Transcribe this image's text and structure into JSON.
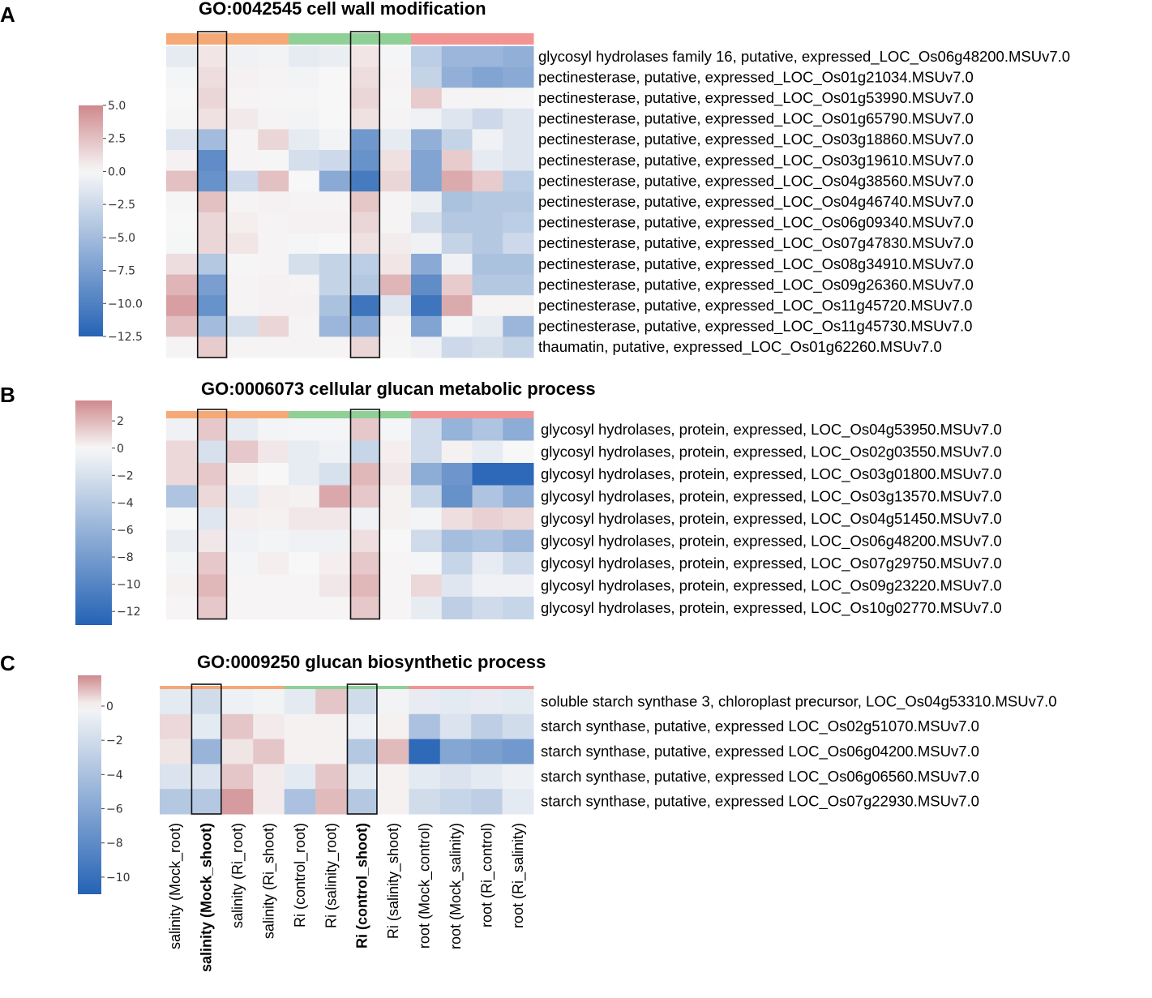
{
  "figure_colors": {
    "low": "#2563b5",
    "mid": "#f7f7f7",
    "high": "#cf898d",
    "group_mock": "#f5a976",
    "group_ri": "#8fd096",
    "group_root": "#f29494"
  },
  "columns": [
    "salinity (Mock_root)",
    "salinity (Mock_shoot)",
    "salinity (Ri_root)",
    "salinity (Ri_shoot)",
    "Ri (control_root)",
    "Ri (salinity_root)",
    "Ri (control_shoot)",
    "Ri (salinity_shoot)",
    "root (Mock_control)",
    "root (Mock_salinity)",
    "root (Ri_control)",
    "root (Ri_salinity)"
  ],
  "highlighted_columns": [
    1,
    6
  ],
  "column_groups": [
    "mock",
    "mock",
    "mock",
    "mock",
    "ri",
    "ri",
    "ri",
    "ri",
    "root",
    "root",
    "root",
    "root"
  ],
  "chart_data": [
    {
      "type": "heatmap",
      "panel": "A",
      "title": "GO:0042545 cell wall modification",
      "colorbar": {
        "min": -12.5,
        "max": 5.0,
        "ticks": [
          5.0,
          2.5,
          0.0,
          -2.5,
          -5.0,
          -7.5,
          -10.0,
          -12.5
        ],
        "tick_labels": [
          "5.0",
          "2.5",
          "0.0",
          "−2.5",
          "−5.0",
          "−7.5",
          "−10.0",
          "−12.5"
        ]
      },
      "rows": [
        "glycosyl hydrolases family 16, putative, expressed_LOC_Os06g48200.MSUv7.0",
        "pectinesterase, putative, expressed_LOC_Os01g21034.MSUv7.0",
        "pectinesterase, putative, expressed_LOC_Os01g53990.MSUv7.0",
        "pectinesterase, putative, expressed_LOC_Os01g65790.MSUv7.0",
        "pectinesterase, putative, expressed_LOC_Os03g18860.MSUv7.0",
        "pectinesterase, putative, expressed_LOC_Os03g19610.MSUv7.0",
        "pectinesterase, putative, expressed_LOC_Os04g38560.MSUv7.0",
        "pectinesterase, putative, expressed_LOC_Os04g46740.MSUv7.0",
        "pectinesterase, putative, expressed_LOC_Os06g09340.MSUv7.0",
        "pectinesterase, putative, expressed_LOC_Os07g47830.MSUv7.0",
        "pectinesterase, putative, expressed_LOC_Os08g34910.MSUv7.0",
        "pectinesterase, putative, expressed_LOC_Os09g26360.MSUv7.0",
        "pectinesterase, putative, expressed_LOC_Os11g45720.MSUv7.0",
        "pectinesterase, putative, expressed_LOC_Os11g45730.MSUv7.0",
        "thaumatin, putative, expressed_LOC_Os01g62260.MSUv7.0"
      ],
      "values": [
        [
          -1.0,
          0.8,
          -0.5,
          -0.3,
          -1.0,
          -0.8,
          0.8,
          -0.2,
          -3.5,
          -5.5,
          -5.5,
          -6.0
        ],
        [
          -0.2,
          1.2,
          0.3,
          0.2,
          -0.3,
          0.0,
          1.2,
          0.2,
          -3.0,
          -6.0,
          -7.0,
          -6.5
        ],
        [
          0.0,
          1.5,
          0.2,
          0.1,
          0.1,
          0.0,
          1.5,
          0.1,
          2.0,
          0.2,
          0.2,
          0.1
        ],
        [
          0.1,
          1.0,
          0.6,
          0.2,
          -0.3,
          0.0,
          1.0,
          0.2,
          -0.5,
          -1.5,
          -2.5,
          -1.5
        ],
        [
          -1.5,
          -5.0,
          0.2,
          1.5,
          -1.0,
          -0.3,
          -8.0,
          -1.0,
          -6.0,
          -3.0,
          -0.5,
          -1.5
        ],
        [
          0.3,
          -9.0,
          0.2,
          0.1,
          -2.0,
          -2.5,
          -8.5,
          1.0,
          -7.0,
          2.0,
          -1.0,
          -1.5
        ],
        [
          2.5,
          -8.5,
          -2.5,
          2.5,
          0.0,
          -6.5,
          -10.5,
          1.5,
          -7.0,
          3.5,
          2.0,
          -3.5
        ],
        [
          0.1,
          2.5,
          0.2,
          0.3,
          0.2,
          0.2,
          2.2,
          0.2,
          -0.8,
          -4.5,
          -4.0,
          -4.0
        ],
        [
          0.0,
          1.5,
          0.4,
          0.2,
          0.3,
          0.3,
          1.5,
          0.2,
          -2.0,
          -4.0,
          -4.0,
          -3.5
        ],
        [
          -0.1,
          1.5,
          0.8,
          0.2,
          -0.2,
          0.0,
          1.0,
          0.5,
          -0.5,
          -3.0,
          -4.0,
          -2.5
        ],
        [
          1.2,
          -4.0,
          0.1,
          0.2,
          -2.0,
          -3.0,
          -3.5,
          0.8,
          -6.5,
          -0.5,
          -4.5,
          -4.5
        ],
        [
          3.0,
          -7.5,
          0.2,
          0.3,
          0.2,
          -3.0,
          -4.0,
          3.0,
          -9.0,
          2.0,
          -4.0,
          -4.0
        ],
        [
          4.0,
          -8.5,
          0.2,
          0.3,
          0.3,
          -4.5,
          -11.0,
          -1.5,
          -11.0,
          3.5,
          0.2,
          0.2
        ],
        [
          2.5,
          -5.0,
          -2.0,
          1.5,
          0.2,
          -5.5,
          -6.5,
          0.2,
          -7.0,
          -0.2,
          -1.0,
          -5.5
        ],
        [
          0.2,
          2.0,
          0.2,
          0.2,
          0.2,
          0.2,
          1.5,
          0.1,
          -0.5,
          -2.5,
          -2.0,
          -3.0
        ]
      ]
    },
    {
      "type": "heatmap",
      "panel": "B",
      "title": "GO:0006073 cellular glucan metabolic process",
      "colorbar": {
        "min": -13.0,
        "max": 3.5,
        "ticks": [
          2,
          0,
          -2,
          -4,
          -6,
          -8,
          -10,
          -12
        ],
        "tick_labels": [
          "2",
          "0",
          "−2",
          "−4",
          "−6",
          "−8",
          "−10",
          "−12"
        ]
      },
      "rows": [
        "glycosyl hydrolases, protein, expressed, LOC_Os04g53950.MSUv7.0",
        "glycosyl hydrolases, protein, expressed, LOC_Os02g03550.MSUv7.0",
        "glycosyl hydrolases, protein, expressed, LOC_Os03g01800.MSUv7.0",
        "glycosyl hydrolases, protein, expressed, LOC_Os03g13570.MSUv7.0",
        "glycosyl hydrolases, protein, expressed, LOC_Os04g51450.MSUv7.0",
        "glycosyl hydrolases, protein, expressed, LOC_Os06g48200.MSUv7.0",
        "glycosyl hydrolases, protein, expressed, LOC_Os07g29750.MSUv7.0",
        "glycosyl hydrolases, protein, expressed, LOC_Os09g23220.MSUv7.0",
        "glycosyl hydrolases, protein, expressed, LOC_Os10g02770.MSUv7.0"
      ],
      "values": [
        [
          -0.5,
          1.5,
          -1.0,
          -0.3,
          -0.2,
          -0.2,
          1.5,
          -0.2,
          -2.5,
          -6.0,
          -4.5,
          -6.5
        ],
        [
          1.0,
          -2.0,
          1.5,
          0.5,
          -1.0,
          -0.5,
          -3.0,
          0.3,
          -2.5,
          0.2,
          -1.0,
          0.0
        ],
        [
          1.0,
          1.5,
          0.2,
          0.0,
          -1.0,
          -2.0,
          2.0,
          0.5,
          -6.5,
          -8.5,
          -12.5,
          -12.5
        ],
        [
          -4.5,
          1.0,
          -1.0,
          0.3,
          0.2,
          2.5,
          1.5,
          0.2,
          -3.0,
          -9.0,
          -4.5,
          -6.5
        ],
        [
          0.0,
          -1.5,
          0.3,
          0.2,
          0.5,
          0.5,
          -0.5,
          0.2,
          -0.3,
          0.8,
          1.2,
          1.0
        ],
        [
          -0.8,
          0.5,
          -0.5,
          -0.3,
          -0.5,
          -0.5,
          0.8,
          0.0,
          -2.5,
          -5.0,
          -4.5,
          -5.5
        ],
        [
          -0.3,
          1.5,
          -0.3,
          0.3,
          0.0,
          0.3,
          1.5,
          0.1,
          -0.2,
          -3.0,
          -1.0,
          -2.5
        ],
        [
          0.2,
          2.0,
          0.1,
          0.1,
          0.1,
          0.5,
          2.0,
          0.1,
          1.0,
          -1.5,
          -0.5,
          -0.5
        ],
        [
          0.1,
          1.5,
          0.1,
          0.1,
          0.1,
          0.1,
          1.5,
          0.1,
          -1.0,
          -3.5,
          -2.5,
          -3.0
        ]
      ]
    },
    {
      "type": "heatmap",
      "panel": "C",
      "title": "GO:0009250 glucan biosynthetic process",
      "colorbar": {
        "min": -11.0,
        "max": 1.8,
        "ticks": [
          0,
          -2,
          -4,
          -6,
          -8,
          -10
        ],
        "tick_labels": [
          "0",
          "−2",
          "−4",
          "−6",
          "−8",
          "−10"
        ]
      },
      "rows": [
        "soluble starch synthase 3, chloroplast precursor, LOC_Os04g53310.MSUv7.0",
        "starch synthase, putative, expressed LOC_Os02g51070.MSUv7.0",
        "starch synthase, putative, expressed LOC_Os06g04200.MSUv7.0",
        "starch synthase, putative, expressed LOC_Os06g06560.MSUv7.0",
        "starch synthase, putative, expressed LOC_Os07g22930.MSUv7.0"
      ],
      "values": [
        [
          -1.0,
          -2.0,
          -0.5,
          -0.3,
          -1.0,
          0.8,
          -2.0,
          -0.3,
          -0.8,
          -1.0,
          -0.8,
          -1.0
        ],
        [
          0.5,
          -1.0,
          0.8,
          0.2,
          0.1,
          0.1,
          -0.5,
          0.1,
          -4.0,
          -1.5,
          -3.0,
          -2.0
        ],
        [
          0.3,
          -5.0,
          0.3,
          0.8,
          0.1,
          0.1,
          -3.5,
          1.0,
          -10.5,
          -6.0,
          -6.5,
          -7.0
        ],
        [
          -1.5,
          -1.5,
          0.8,
          0.2,
          -1.0,
          0.8,
          -1.0,
          0.1,
          -1.0,
          -1.5,
          -1.0,
          -0.5
        ],
        [
          -3.5,
          -3.5,
          1.5,
          0.2,
          -4.0,
          1.0,
          -3.5,
          0.1,
          -2.0,
          -2.5,
          -3.0,
          -1.0
        ]
      ]
    }
  ]
}
